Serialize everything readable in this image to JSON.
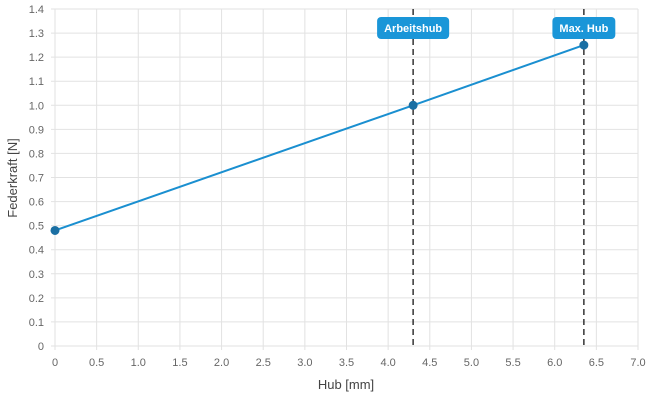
{
  "chart_data": {
    "type": "line",
    "title": "",
    "xlabel": "Hub [mm]",
    "ylabel": "Federkraft [N]",
    "xlim": [
      0,
      7.0
    ],
    "ylim": [
      0,
      1.4
    ],
    "x_ticks": [
      "0",
      "0.5",
      "1.0",
      "1.5",
      "2.0",
      "2.5",
      "3.0",
      "3.5",
      "4.0",
      "4.5",
      "5.0",
      "5.5",
      "6.0",
      "6.5",
      "7.0"
    ],
    "y_ticks": [
      "0",
      "0.1",
      "0.2",
      "0.3",
      "0.4",
      "0.5",
      "0.6",
      "0.7",
      "0.8",
      "0.9",
      "1.0",
      "1.1",
      "1.2",
      "1.3",
      "1.4"
    ],
    "grid": true,
    "series": [
      {
        "color": "#1a8fd0",
        "points": [
          {
            "x": 0,
            "y": 0.48
          },
          {
            "x": 4.3,
            "y": 1.0
          },
          {
            "x": 6.35,
            "y": 1.25
          }
        ]
      }
    ],
    "annotations": [
      {
        "label": "Arbeitshub",
        "x": 4.3,
        "color": "#1a96d8"
      },
      {
        "label": "Max. Hub",
        "x": 6.35,
        "color": "#1a96d8"
      }
    ]
  }
}
